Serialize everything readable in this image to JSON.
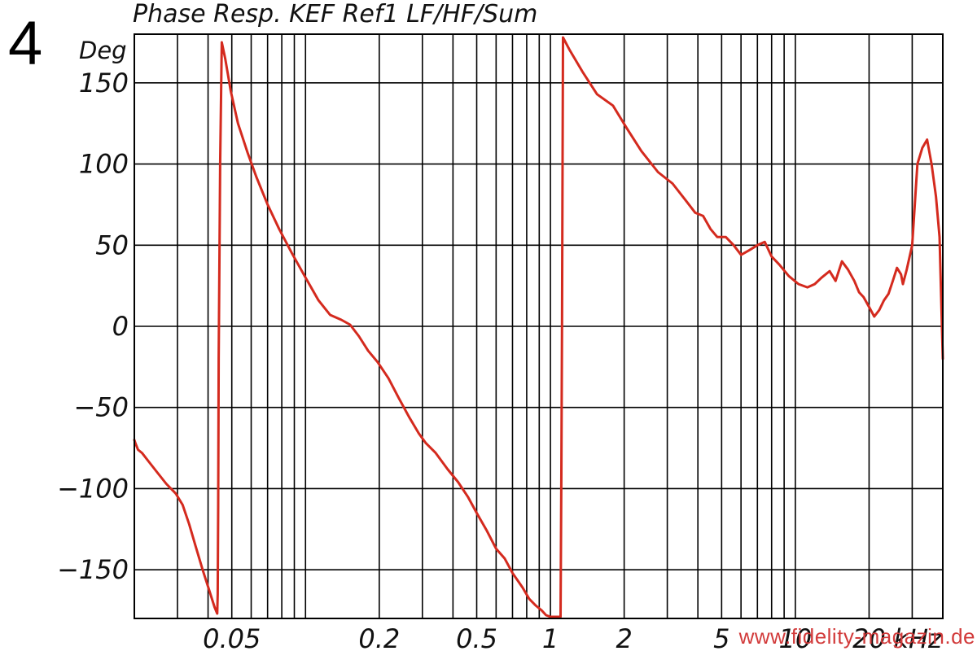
{
  "figure_number": "4",
  "watermark": "www.fidelity-magazin.de",
  "colors": {
    "trace": "#d42a1e",
    "grid": "#000000",
    "watermark": "#d23b3b"
  },
  "chart_data": {
    "type": "line",
    "title": "Phase Resp. KEF Ref1 LF/HF/Sum",
    "ylabel": "Deg",
    "x_unit_label": "kHz",
    "x_scale": "log",
    "xlim": [
      0.02,
      40
    ],
    "ylim": [
      -180,
      180
    ],
    "grid": true,
    "y_ticks": [
      150,
      100,
      50,
      0,
      -50,
      -100,
      -150
    ],
    "y_tick_labels": [
      "150",
      "100",
      "50",
      "0",
      "−50",
      "−100",
      "−150"
    ],
    "x_ticks": [
      0.05,
      0.2,
      0.5,
      1,
      2,
      5,
      10,
      20
    ],
    "x_tick_labels": [
      "0.05",
      "0.2",
      "0.5",
      "1",
      "2",
      "5",
      "10",
      "20"
    ],
    "series": [
      {
        "color": "#d42a1e",
        "x": [
          0.02,
          0.0202,
          0.0207,
          0.0215,
          0.0228,
          0.0248,
          0.027,
          0.0295,
          0.0315,
          0.0335,
          0.0355,
          0.038,
          0.0405,
          0.0425,
          0.0436,
          0.0438,
          0.044,
          0.0442,
          0.0448,
          0.0455,
          0.047,
          0.0495,
          0.053,
          0.058,
          0.063,
          0.07,
          0.078,
          0.088,
          0.1,
          0.113,
          0.126,
          0.14,
          0.152,
          0.165,
          0.18,
          0.197,
          0.218,
          0.24,
          0.265,
          0.29,
          0.31,
          0.34,
          0.38,
          0.42,
          0.46,
          0.5,
          0.55,
          0.6,
          0.65,
          0.7,
          0.77,
          0.82,
          0.87,
          0.92,
          0.96,
          1.0,
          1.04,
          1.07,
          1.1,
          1.108,
          1.115,
          1.125,
          1.2,
          1.35,
          1.55,
          1.8,
          2.05,
          2.35,
          2.75,
          3.15,
          3.55,
          3.9,
          4.2,
          4.5,
          4.8,
          5.2,
          5.6,
          6.0,
          6.5,
          7.0,
          7.5,
          8.0,
          8.6,
          9.4,
          10.3,
          11.2,
          12.0,
          12.8,
          13.8,
          14.6,
          15.5,
          16.4,
          17.4,
          18.2,
          19.0,
          20.0,
          21.0,
          22.0,
          23.0,
          24.0,
          25.0,
          26.0,
          27.0,
          27.5,
          28.5,
          30.0,
          31.5,
          33.0,
          34.5,
          36.0,
          37.5,
          38.8,
          40.0
        ],
        "y": [
          -70,
          -72,
          -76,
          -78,
          -83,
          -90,
          -97,
          -103,
          -110,
          -122,
          -135,
          -150,
          -163,
          -173,
          -177,
          -165,
          -110,
          -20,
          100,
          175,
          165,
          145,
          125,
          107,
          92,
          75,
          60,
          45,
          30,
          16,
          7,
          4,
          1,
          -6,
          -15,
          -22,
          -32,
          -44,
          -56,
          -66,
          -72,
          -78,
          -88,
          -96,
          -105,
          -115,
          -126,
          -137,
          -143,
          -152,
          -161,
          -168,
          -172,
          -175,
          -178,
          -179,
          -179,
          -179,
          -179,
          -90,
          0,
          178,
          170,
          157,
          143,
          136,
          122,
          108,
          95,
          88,
          78,
          70,
          68,
          60,
          55,
          55,
          50,
          44,
          47,
          50,
          52,
          43,
          38,
          31,
          26,
          24,
          26,
          30,
          34,
          28,
          40,
          35,
          28,
          21,
          18,
          12,
          6,
          10,
          16,
          20,
          28,
          36,
          32,
          26,
          35,
          50,
          100,
          110,
          115,
          100,
          80,
          55,
          -20
        ]
      }
    ]
  }
}
